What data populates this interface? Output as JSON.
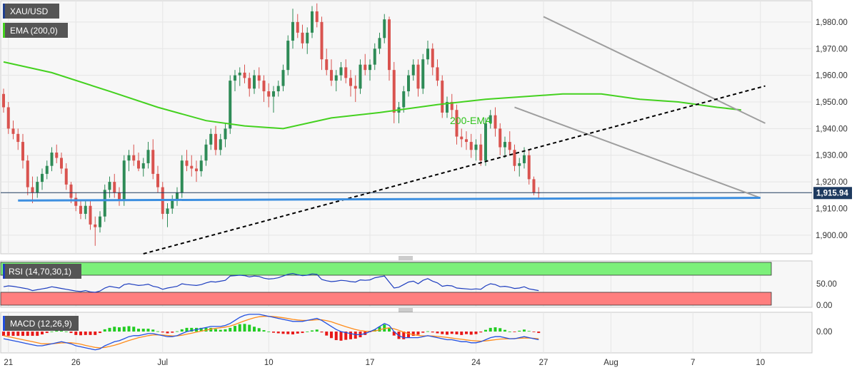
{
  "chart_data": [
    {
      "type": "candlestick",
      "symbol": "XAU/USD",
      "indicator_label": "EMA (200,0)",
      "annotation": "200-EMA",
      "price_label": "1,915.94",
      "last_price": 1915.94,
      "ylim": [
        1893,
        1988
      ],
      "yticks": [
        1900,
        1910,
        1920,
        1930,
        1940,
        1950,
        1960,
        1970,
        1980
      ],
      "ytick_labels": [
        "1,900.00",
        "1,910.00",
        "1,920.00",
        "1,930.00",
        "1,940.00",
        "1,950.00",
        "1,960.00",
        "1,970.00",
        "1,980.00"
      ],
      "xticks": [
        {
          "label": "21",
          "index": 1
        },
        {
          "label": "26",
          "index": 15
        },
        {
          "label": "Jul",
          "index": 33
        },
        {
          "label": "10",
          "index": 55
        },
        {
          "label": "17",
          "index": 76
        },
        {
          "label": "24",
          "index": 98
        },
        {
          "label": "27",
          "index": 112
        },
        {
          "label": "Aug",
          "index": 126
        },
        {
          "label": "7",
          "index": 143
        },
        {
          "label": "10",
          "index": 157
        }
      ],
      "candles": [
        [
          1953,
          1955,
          1946,
          1948
        ],
        [
          1948,
          1950,
          1938,
          1940
        ],
        [
          1940,
          1943,
          1936,
          1938
        ],
        [
          1938,
          1940,
          1932,
          1935
        ],
        [
          1935,
          1938,
          1925,
          1928
        ],
        [
          1928,
          1930,
          1915,
          1918
        ],
        [
          1918,
          1922,
          1912,
          1916
        ],
        [
          1916,
          1922,
          1914,
          1920
        ],
        [
          1920,
          1925,
          1917,
          1923
        ],
        [
          1923,
          1928,
          1921,
          1926
        ],
        [
          1926,
          1933,
          1924,
          1931
        ],
        [
          1931,
          1934,
          1927,
          1929
        ],
        [
          1929,
          1931,
          1923,
          1925
        ],
        [
          1925,
          1927,
          1917,
          1919
        ],
        [
          1919,
          1920,
          1912,
          1914
        ],
        [
          1914,
          1916,
          1909,
          1911
        ],
        [
          1911,
          1913,
          1906,
          1908
        ],
        [
          1908,
          1913,
          1906,
          1911
        ],
        [
          1911,
          1913,
          1902,
          1904
        ],
        [
          1904,
          1907,
          1896,
          1903
        ],
        [
          1903,
          1909,
          1901,
          1907
        ],
        [
          1907,
          1919,
          1905,
          1917
        ],
        [
          1917,
          1922,
          1914,
          1920
        ],
        [
          1920,
          1923,
          1914,
          1916
        ],
        [
          1916,
          1918,
          1911,
          1913
        ],
        [
          1913,
          1930,
          1911,
          1928
        ],
        [
          1928,
          1932,
          1924,
          1930
        ],
        [
          1930,
          1934,
          1926,
          1928
        ],
        [
          1928,
          1931,
          1924,
          1925
        ],
        [
          1925,
          1929,
          1922,
          1927
        ],
        [
          1927,
          1935,
          1925,
          1932
        ],
        [
          1932,
          1936,
          1921,
          1923
        ],
        [
          1923,
          1926,
          1916,
          1918
        ],
        [
          1918,
          1920,
          1906,
          1908
        ],
        [
          1908,
          1912,
          1903,
          1910
        ],
        [
          1910,
          1915,
          1908,
          1913
        ],
        [
          1913,
          1918,
          1911,
          1916
        ],
        [
          1916,
          1930,
          1914,
          1928
        ],
        [
          1928,
          1932,
          1924,
          1926
        ],
        [
          1926,
          1930,
          1922,
          1925
        ],
        [
          1925,
          1928,
          1920,
          1924
        ],
        [
          1924,
          1930,
          1922,
          1928
        ],
        [
          1928,
          1936,
          1926,
          1934
        ],
        [
          1934,
          1940,
          1932,
          1938
        ],
        [
          1938,
          1941,
          1930,
          1932
        ],
        [
          1932,
          1938,
          1930,
          1936
        ],
        [
          1936,
          1942,
          1933,
          1940
        ],
        [
          1940,
          1960,
          1938,
          1958
        ],
        [
          1958,
          1962,
          1954,
          1960
        ],
        [
          1960,
          1963,
          1956,
          1961
        ],
        [
          1961,
          1964,
          1957,
          1959
        ],
        [
          1959,
          1961,
          1952,
          1955
        ],
        [
          1955,
          1962,
          1953,
          1960
        ],
        [
          1960,
          1963,
          1955,
          1958
        ],
        [
          1958,
          1960,
          1950,
          1954
        ],
        [
          1954,
          1957,
          1948,
          1952
        ],
        [
          1952,
          1956,
          1946,
          1954
        ],
        [
          1954,
          1958,
          1952,
          1956
        ],
        [
          1956,
          1964,
          1954,
          1962
        ],
        [
          1962,
          1975,
          1960,
          1973
        ],
        [
          1973,
          1985,
          1970,
          1980
        ],
        [
          1980,
          1983,
          1974,
          1976
        ],
        [
          1976,
          1979,
          1970,
          1972
        ],
        [
          1972,
          1978,
          1968,
          1976
        ],
        [
          1976,
          1986,
          1974,
          1984
        ],
        [
          1984,
          1987,
          1978,
          1980
        ],
        [
          1980,
          1982,
          1962,
          1966
        ],
        [
          1966,
          1970,
          1960,
          1962
        ],
        [
          1962,
          1966,
          1956,
          1958
        ],
        [
          1958,
          1962,
          1954,
          1960
        ],
        [
          1960,
          1965,
          1958,
          1963
        ],
        [
          1963,
          1966,
          1957,
          1959
        ],
        [
          1959,
          1962,
          1952,
          1956
        ],
        [
          1956,
          1960,
          1950,
          1955
        ],
        [
          1955,
          1966,
          1953,
          1964
        ],
        [
          1964,
          1968,
          1960,
          1962
        ],
        [
          1962,
          1966,
          1958,
          1964
        ],
        [
          1964,
          1972,
          1962,
          1970
        ],
        [
          1970,
          1976,
          1968,
          1974
        ],
        [
          1974,
          1983,
          1972,
          1981
        ],
        [
          1981,
          1982,
          1958,
          1962
        ],
        [
          1962,
          1965,
          1942,
          1946
        ],
        [
          1946,
          1950,
          1942,
          1948
        ],
        [
          1948,
          1956,
          1946,
          1954
        ],
        [
          1954,
          1962,
          1952,
          1960
        ],
        [
          1960,
          1966,
          1958,
          1964
        ],
        [
          1964,
          1966,
          1952,
          1955
        ],
        [
          1955,
          1968,
          1953,
          1966
        ],
        [
          1966,
          1973,
          1964,
          1970
        ],
        [
          1970,
          1972,
          1960,
          1963
        ],
        [
          1963,
          1966,
          1956,
          1958
        ],
        [
          1958,
          1960,
          1944,
          1946
        ],
        [
          1946,
          1952,
          1944,
          1950
        ],
        [
          1950,
          1953,
          1944,
          1947
        ],
        [
          1947,
          1949,
          1934,
          1937
        ],
        [
          1937,
          1940,
          1933,
          1936
        ],
        [
          1936,
          1939,
          1932,
          1935
        ],
        [
          1935,
          1938,
          1929,
          1932
        ],
        [
          1932,
          1936,
          1928,
          1934
        ],
        [
          1934,
          1938,
          1926,
          1928
        ],
        [
          1928,
          1944,
          1926,
          1942
        ],
        [
          1942,
          1947,
          1940,
          1945
        ],
        [
          1945,
          1948,
          1937,
          1940
        ],
        [
          1940,
          1942,
          1930,
          1933
        ],
        [
          1933,
          1937,
          1929,
          1935
        ],
        [
          1935,
          1939,
          1930,
          1932
        ],
        [
          1932,
          1934,
          1924,
          1926
        ],
        [
          1926,
          1929,
          1922,
          1927
        ],
        [
          1927,
          1933,
          1925,
          1930
        ],
        [
          1930,
          1932,
          1919,
          1921
        ],
        [
          1921,
          1922,
          1915,
          1916
        ],
        [
          1916,
          1918,
          1914,
          1915.94
        ]
      ],
      "ema200_points": [
        [
          0,
          1965
        ],
        [
          10,
          1961
        ],
        [
          22,
          1954
        ],
        [
          32,
          1948
        ],
        [
          42,
          1943
        ],
        [
          50,
          1941
        ],
        [
          58,
          1940
        ],
        [
          68,
          1944
        ],
        [
          78,
          1946
        ],
        [
          90,
          1949
        ],
        [
          100,
          1951
        ],
        [
          108,
          1952
        ],
        [
          116,
          1953
        ],
        [
          124,
          1953
        ],
        [
          132,
          1951
        ],
        [
          140,
          1950
        ],
        [
          148,
          1948
        ],
        [
          153,
          1947
        ]
      ],
      "trendlines": [
        {
          "name": "resistance-channel",
          "points": [
            [
              112,
              1982
            ],
            [
              158,
              1942
            ]
          ],
          "style": "solid",
          "color": "#9e9e9e"
        },
        {
          "name": "support-channel",
          "points": [
            [
              106,
              1948
            ],
            [
              157,
              1914
            ]
          ],
          "style": "solid",
          "color": "#9e9e9e"
        },
        {
          "name": "rising-trendline",
          "points": [
            [
              29,
              1893
            ],
            [
              158,
              1956
            ]
          ],
          "style": "dashed",
          "color": "#000000"
        },
        {
          "name": "horizontal-support",
          "points": [
            [
              3,
              1913
            ],
            [
              157,
              1914
            ]
          ],
          "style": "solid",
          "color": "#3d8fe0"
        }
      ],
      "horizontal_line": 1915.94
    },
    {
      "type": "line",
      "label": "RSI (14,70,30,1)",
      "ylim": [
        0,
        100
      ],
      "yticks": [
        0,
        50
      ],
      "ytick_labels": [
        "0.00",
        "50.00"
      ],
      "bands": {
        "overbought": 70,
        "oversold": 30
      },
      "values": [
        43,
        45,
        44,
        42,
        40,
        38,
        34,
        36,
        38,
        40,
        43,
        41,
        39,
        37,
        35,
        33,
        32,
        34,
        31,
        30,
        33,
        40,
        44,
        42,
        40,
        48,
        50,
        48,
        46,
        47,
        49,
        44,
        42,
        37,
        40,
        42,
        44,
        50,
        48,
        47,
        46,
        48,
        52,
        55,
        54,
        56,
        58,
        68,
        69,
        70,
        69,
        66,
        68,
        67,
        63,
        61,
        62,
        64,
        68,
        72,
        74,
        71,
        69,
        70,
        73,
        72,
        60,
        57,
        55,
        56,
        58,
        57,
        55,
        54,
        59,
        58,
        59,
        64,
        66,
        68,
        54,
        40,
        42,
        48,
        54,
        56,
        50,
        58,
        62,
        56,
        52,
        44,
        46,
        45,
        40,
        39,
        38,
        37,
        38,
        37,
        45,
        50,
        48,
        43,
        44,
        42,
        39,
        40,
        43,
        38,
        36,
        34
      ]
    },
    {
      "type": "macd",
      "label": "MACD (12,26,9)",
      "ylim": [
        -10.5,
        9.5
      ],
      "yticks": [
        0
      ],
      "ytick_labels": [
        "0.00"
      ],
      "macd": [
        -3.5,
        -4,
        -4.5,
        -5,
        -5.5,
        -6,
        -6.5,
        -7,
        -7,
        -6.5,
        -6,
        -5.5,
        -5,
        -5.5,
        -6,
        -7,
        -7.5,
        -8,
        -8.5,
        -9,
        -8.5,
        -7,
        -6,
        -5,
        -4.5,
        -3.5,
        -2.5,
        -2,
        -2,
        -1.5,
        -1,
        -1,
        -1.5,
        -2,
        -2.5,
        -2.5,
        -2,
        -1,
        0,
        0.5,
        1,
        1.5,
        2,
        2.5,
        2.5,
        2.5,
        3,
        4,
        5.5,
        7,
        8,
        8.5,
        8.5,
        8.5,
        8,
        7.5,
        7,
        6.5,
        6,
        5.5,
        5,
        5,
        5,
        5.5,
        6,
        6.5,
        5.5,
        4,
        2.5,
        1,
        0,
        -0.5,
        -1,
        -1.5,
        -1.5,
        -1,
        0,
        1,
        2.5,
        4,
        3,
        0,
        -2,
        -3,
        -3,
        -3,
        -3,
        -2.5,
        -2,
        -2.5,
        -3,
        -3.5,
        -4,
        -4,
        -4.5,
        -5,
        -5,
        -5.5,
        -5.5,
        -5,
        -4,
        -3,
        -2.5,
        -2.5,
        -3,
        -3.5,
        -3.5,
        -3,
        -2.5,
        -3,
        -3.5,
        -4
      ],
      "signal": [
        -2,
        -2.5,
        -3,
        -3.5,
        -4,
        -4.5,
        -5,
        -5.5,
        -6,
        -6,
        -6,
        -5.8,
        -5.6,
        -5.5,
        -5.5,
        -5.8,
        -6.2,
        -6.8,
        -7.3,
        -7.8,
        -8,
        -7.8,
        -7.3,
        -6.7,
        -6,
        -5.2,
        -4.4,
        -3.7,
        -3,
        -2.5,
        -2,
        -1.7,
        -1.6,
        -1.7,
        -1.9,
        -2.1,
        -2.1,
        -1.8,
        -1.3,
        -0.8,
        -0.3,
        0.2,
        0.7,
        1.2,
        1.6,
        1.9,
        2.2,
        2.7,
        3.5,
        4.4,
        5.3,
        6.1,
        6.8,
        7.3,
        7.5,
        7.5,
        7.4,
        7.1,
        6.8,
        6.4,
        6,
        5.7,
        5.5,
        5.5,
        5.6,
        5.8,
        5.8,
        5.4,
        4.8,
        4,
        3.2,
        2.4,
        1.7,
        1,
        0.5,
        0.2,
        0.1,
        0.3,
        0.8,
        1.5,
        1.8,
        1.4,
        0.6,
        -0.3,
        -1,
        -1.5,
        -1.9,
        -2.1,
        -2.1,
        -2.2,
        -2.4,
        -2.6,
        -2.9,
        -3.2,
        -3.5,
        -3.8,
        -4.1,
        -4.4,
        -4.6,
        -4.7,
        -4.6,
        -4.3,
        -4,
        -3.7,
        -3.6,
        -3.5,
        -3.4,
        -3.3,
        -3.2,
        -3.2,
        -3.3,
        -3.5
      ]
    }
  ],
  "colors": {
    "bull": "#2e8b57",
    "bear": "#d9534f",
    "ema": "#44d11f",
    "ema_text": "#2ec21a",
    "price_box": "#1e3a5f",
    "rsi_line": "#1d3dbf",
    "rsi_overbought": "#7cf07a",
    "rsi_oversold": "#ff7f7f",
    "macd_line": "#2350e0",
    "signal_line": "#ff8c1a",
    "hist_pos": "#22cc22",
    "hist_neg": "#e81818"
  }
}
